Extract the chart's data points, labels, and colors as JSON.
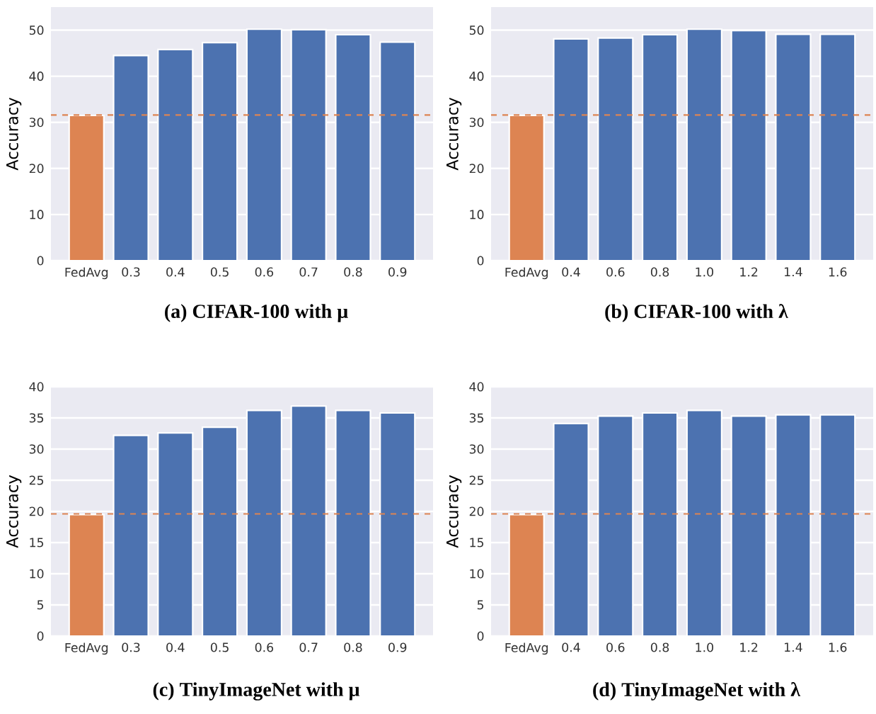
{
  "chart_data": [
    {
      "type": "bar",
      "title": "(a) CIFAR-100 with μ",
      "ylabel": "Accuracy",
      "categories": [
        "FedAvg",
        "0.3",
        "0.4",
        "0.5",
        "0.6",
        "0.7",
        "0.8",
        "0.9"
      ],
      "values": [
        31.5,
        44.5,
        45.8,
        47.3,
        50.2,
        50.1,
        49.0,
        47.4
      ],
      "colors": [
        "#dd8452",
        "#4c72b0",
        "#4c72b0",
        "#4c72b0",
        "#4c72b0",
        "#4c72b0",
        "#4c72b0",
        "#4c72b0"
      ],
      "ylim": [
        0,
        55
      ],
      "yticks": [
        0,
        10,
        20,
        30,
        40,
        50
      ],
      "grid": "y",
      "ref_lines": [
        {
          "axis": "y",
          "value": 31.6,
          "color": "#dd8452",
          "line_style": "dashed"
        }
      ]
    },
    {
      "type": "bar",
      "title": "(b) CIFAR-100 with λ",
      "ylabel": "Accuracy",
      "categories": [
        "FedAvg",
        "0.4",
        "0.6",
        "0.8",
        "1.0",
        "1.2",
        "1.4",
        "1.6"
      ],
      "values": [
        31.5,
        48.1,
        48.3,
        49.0,
        50.2,
        49.9,
        49.1,
        49.1
      ],
      "colors": [
        "#dd8452",
        "#4c72b0",
        "#4c72b0",
        "#4c72b0",
        "#4c72b0",
        "#4c72b0",
        "#4c72b0",
        "#4c72b0"
      ],
      "ylim": [
        0,
        55
      ],
      "yticks": [
        0,
        10,
        20,
        30,
        40,
        50
      ],
      "grid": "y",
      "ref_lines": [
        {
          "axis": "y",
          "value": 31.6,
          "color": "#dd8452",
          "line_style": "dashed"
        }
      ]
    },
    {
      "type": "bar",
      "title": "(c) TinyImageNet with μ",
      "ylabel": "Accuracy",
      "categories": [
        "FedAvg",
        "0.3",
        "0.4",
        "0.5",
        "0.6",
        "0.7",
        "0.8",
        "0.9"
      ],
      "values": [
        19.5,
        32.2,
        32.6,
        33.5,
        36.2,
        36.9,
        36.2,
        35.8
      ],
      "colors": [
        "#dd8452",
        "#4c72b0",
        "#4c72b0",
        "#4c72b0",
        "#4c72b0",
        "#4c72b0",
        "#4c72b0",
        "#4c72b0"
      ],
      "ylim": [
        0,
        40
      ],
      "yticks": [
        0,
        5,
        10,
        15,
        20,
        25,
        30,
        35,
        40
      ],
      "grid": "y",
      "ref_lines": [
        {
          "axis": "y",
          "value": 19.6,
          "color": "#dd8452",
          "line_style": "dashed"
        }
      ]
    },
    {
      "type": "bar",
      "title": "(d) TinyImageNet with λ",
      "ylabel": "Accuracy",
      "categories": [
        "FedAvg",
        "0.4",
        "0.6",
        "0.8",
        "1.0",
        "1.2",
        "1.4",
        "1.6"
      ],
      "values": [
        19.5,
        34.1,
        35.3,
        35.8,
        36.2,
        35.3,
        35.5,
        35.5
      ],
      "colors": [
        "#dd8452",
        "#4c72b0",
        "#4c72b0",
        "#4c72b0",
        "#4c72b0",
        "#4c72b0",
        "#4c72b0",
        "#4c72b0"
      ],
      "ylim": [
        0,
        40
      ],
      "yticks": [
        0,
        5,
        10,
        15,
        20,
        25,
        30,
        35,
        40
      ],
      "grid": "y",
      "ref_lines": [
        {
          "axis": "y",
          "value": 19.6,
          "color": "#dd8452",
          "line_style": "dashed"
        }
      ]
    }
  ]
}
